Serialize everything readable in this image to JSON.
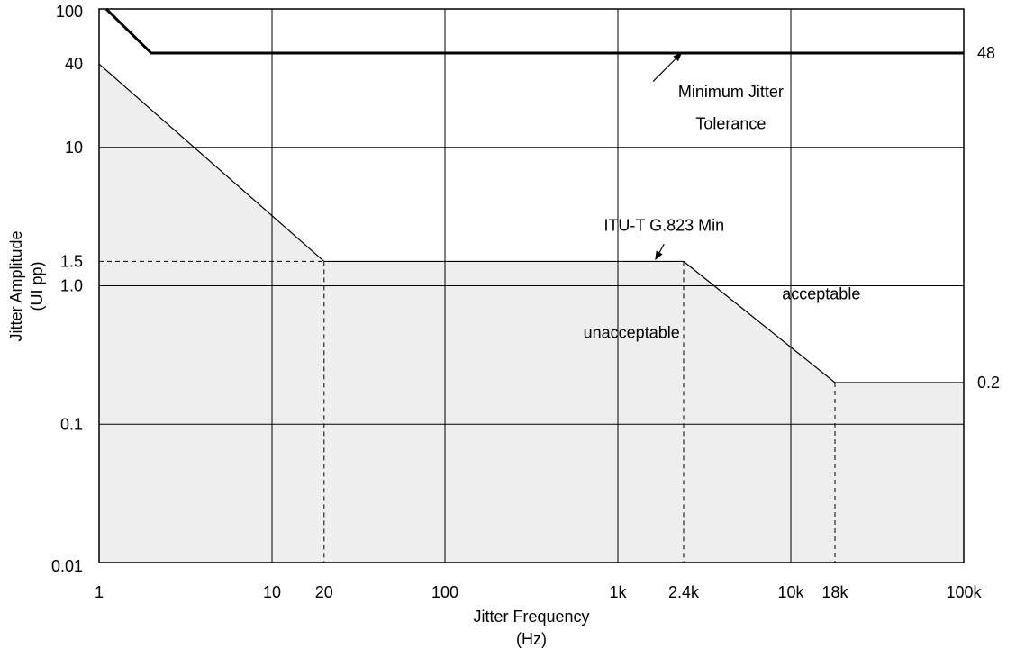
{
  "chart_data": {
    "type": "line",
    "title": "",
    "xlabel": "Jitter Frequency",
    "xlabel_unit": "(Hz)",
    "ylabel": "Jitter Amplitude",
    "ylabel_unit": "(UI pp)",
    "x_scale": "log",
    "y_scale": "log",
    "xlim": [
      1,
      100000
    ],
    "ylim": [
      0.01,
      100
    ],
    "grid": true,
    "x_ticks": [
      {
        "value": 1,
        "label": "1"
      },
      {
        "value": 10,
        "label": "10"
      },
      {
        "value": 20,
        "label": "20"
      },
      {
        "value": 100,
        "label": "100"
      },
      {
        "value": 1000,
        "label": "1k"
      },
      {
        "value": 2400,
        "label": "2.4k"
      },
      {
        "value": 10000,
        "label": "10k"
      },
      {
        "value": 18000,
        "label": "18k"
      },
      {
        "value": 100000,
        "label": "100k"
      }
    ],
    "y_ticks": [
      {
        "value": 0.01,
        "label": "0.01"
      },
      {
        "value": 0.1,
        "label": "0.1"
      },
      {
        "value": 1.0,
        "label": "1.0"
      },
      {
        "value": 1.5,
        "label": "1.5"
      },
      {
        "value": 10,
        "label": "10"
      },
      {
        "value": 40,
        "label": "40"
      },
      {
        "value": 100,
        "label": "100"
      }
    ],
    "right_labels": [
      {
        "value": 48,
        "label": "48"
      },
      {
        "value": 0.2,
        "label": "0.2"
      }
    ],
    "series": [
      {
        "name": "Minimum Jitter Tolerance",
        "x": [
          1.1,
          2,
          100000
        ],
        "y": [
          100,
          48,
          48
        ]
      },
      {
        "name": "ITU-T G.823 Min",
        "x": [
          1,
          20,
          2400,
          18000,
          100000
        ],
        "y": [
          40,
          1.5,
          1.5,
          0.2,
          0.2
        ]
      }
    ],
    "reference_lines": [
      {
        "x": [
          1,
          20
        ],
        "y": [
          1.5,
          1.5
        ]
      },
      {
        "x": [
          20,
          20
        ],
        "y": [
          1.5,
          0.01
        ]
      },
      {
        "x": [
          2400,
          2400
        ],
        "y": [
          1.5,
          0.01
        ]
      },
      {
        "x": [
          18000,
          18000
        ],
        "y": [
          0.2,
          0.01
        ]
      }
    ],
    "annotations": [
      {
        "text": "Minimum Jitter",
        "x": 4500,
        "y": 23
      },
      {
        "text": "Tolerance",
        "x": 4500,
        "y": 13.5
      },
      {
        "text": "ITU-T G.823 Min",
        "x": 1850,
        "y": 2.5
      },
      {
        "text": "unacceptable",
        "x": 1200,
        "y": 0.42
      },
      {
        "text": "acceptable",
        "x": 15000,
        "y": 0.8
      }
    ],
    "arrows": [
      {
        "from": [
          1600,
          30
        ],
        "to": [
          2330,
          48
        ]
      },
      {
        "from": [
          1850,
          2.0
        ],
        "to": [
          1650,
          1.55
        ]
      }
    ],
    "region_labels": {
      "below": "unacceptable",
      "above": "acceptable"
    }
  }
}
